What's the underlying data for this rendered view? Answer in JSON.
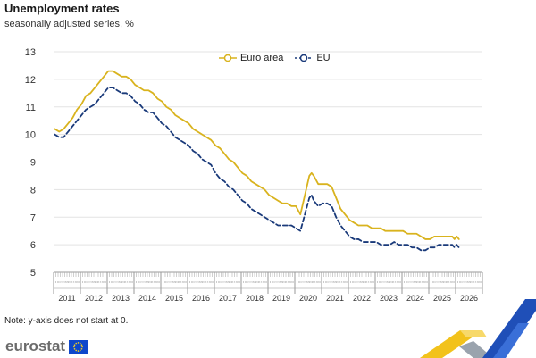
{
  "header": {
    "title": "Unemployment rates",
    "subtitle": "seasonally adjusted series, %"
  },
  "note": "Note: y-axis does not start at 0.",
  "brand": {
    "logo_text": "eurostat",
    "logo_color": "#6b6b6b",
    "flag_color": "#0e47cb",
    "flag_stars_color": "#ffd617"
  },
  "chart_data": {
    "type": "line",
    "title": "Unemployment rates",
    "subtitle": "seasonally adjusted series, %",
    "xlabel": "",
    "ylabel": "",
    "ylim": [
      5,
      13
    ],
    "yticks": [
      5,
      6,
      7,
      8,
      9,
      10,
      11,
      12,
      13
    ],
    "xlim": [
      "2011-01",
      "2026-12"
    ],
    "xtick_labels": [
      "2011",
      "2012",
      "2013",
      "2014",
      "2015",
      "2016",
      "2017",
      "2018",
      "2019",
      "2020",
      "2021",
      "2022",
      "2023",
      "2024",
      "2025",
      "2026"
    ],
    "xtick_minor_labels": [
      "II",
      "III",
      "IV",
      "V",
      "VI",
      "VII",
      "VIII",
      "IX",
      "X",
      "XI",
      "XII"
    ],
    "grid": "horizontal",
    "legend_position": "top-center",
    "series": [
      {
        "name": "Euro area",
        "color": "#d9b31e",
        "dash": "solid",
        "points": [
          [
            "2011-01",
            10.2
          ],
          [
            "2011-03",
            10.1
          ],
          [
            "2011-05",
            10.2
          ],
          [
            "2011-07",
            10.4
          ],
          [
            "2011-09",
            10.6
          ],
          [
            "2011-11",
            10.9
          ],
          [
            "2012-01",
            11.1
          ],
          [
            "2012-03",
            11.4
          ],
          [
            "2012-05",
            11.5
          ],
          [
            "2012-07",
            11.7
          ],
          [
            "2012-09",
            11.9
          ],
          [
            "2012-11",
            12.1
          ],
          [
            "2013-01",
            12.3
          ],
          [
            "2013-03",
            12.3
          ],
          [
            "2013-05",
            12.2
          ],
          [
            "2013-07",
            12.1
          ],
          [
            "2013-09",
            12.1
          ],
          [
            "2013-11",
            12.0
          ],
          [
            "2014-01",
            11.8
          ],
          [
            "2014-03",
            11.7
          ],
          [
            "2014-05",
            11.6
          ],
          [
            "2014-07",
            11.6
          ],
          [
            "2014-09",
            11.5
          ],
          [
            "2014-11",
            11.3
          ],
          [
            "2015-01",
            11.2
          ],
          [
            "2015-03",
            11.0
          ],
          [
            "2015-05",
            10.9
          ],
          [
            "2015-07",
            10.7
          ],
          [
            "2015-09",
            10.6
          ],
          [
            "2015-11",
            10.5
          ],
          [
            "2016-01",
            10.4
          ],
          [
            "2016-03",
            10.2
          ],
          [
            "2016-05",
            10.1
          ],
          [
            "2016-07",
            10.0
          ],
          [
            "2016-09",
            9.9
          ],
          [
            "2016-11",
            9.8
          ],
          [
            "2017-01",
            9.6
          ],
          [
            "2017-03",
            9.5
          ],
          [
            "2017-05",
            9.3
          ],
          [
            "2017-07",
            9.1
          ],
          [
            "2017-09",
            9.0
          ],
          [
            "2017-11",
            8.8
          ],
          [
            "2018-01",
            8.6
          ],
          [
            "2018-03",
            8.5
          ],
          [
            "2018-05",
            8.3
          ],
          [
            "2018-07",
            8.2
          ],
          [
            "2018-09",
            8.1
          ],
          [
            "2018-11",
            8.0
          ],
          [
            "2019-01",
            7.8
          ],
          [
            "2019-03",
            7.7
          ],
          [
            "2019-05",
            7.6
          ],
          [
            "2019-07",
            7.5
          ],
          [
            "2019-09",
            7.5
          ],
          [
            "2019-11",
            7.4
          ],
          [
            "2020-01",
            7.4
          ],
          [
            "2020-03",
            7.1
          ],
          [
            "2020-05",
            7.8
          ],
          [
            "2020-07",
            8.5
          ],
          [
            "2020-08",
            8.6
          ],
          [
            "2020-09",
            8.5
          ],
          [
            "2020-11",
            8.2
          ],
          [
            "2021-01",
            8.2
          ],
          [
            "2021-03",
            8.2
          ],
          [
            "2021-05",
            8.1
          ],
          [
            "2021-07",
            7.7
          ],
          [
            "2021-09",
            7.3
          ],
          [
            "2021-11",
            7.1
          ],
          [
            "2022-01",
            6.9
          ],
          [
            "2022-03",
            6.8
          ],
          [
            "2022-05",
            6.7
          ],
          [
            "2022-07",
            6.7
          ],
          [
            "2022-09",
            6.7
          ],
          [
            "2022-11",
            6.6
          ],
          [
            "2023-01",
            6.6
          ],
          [
            "2023-03",
            6.6
          ],
          [
            "2023-05",
            6.5
          ],
          [
            "2023-07",
            6.5
          ],
          [
            "2023-09",
            6.5
          ],
          [
            "2023-11",
            6.5
          ],
          [
            "2024-01",
            6.5
          ],
          [
            "2024-03",
            6.4
          ],
          [
            "2024-05",
            6.4
          ],
          [
            "2024-07",
            6.4
          ],
          [
            "2024-09",
            6.3
          ],
          [
            "2024-11",
            6.2
          ],
          [
            "2025-01",
            6.2
          ],
          [
            "2025-03",
            6.3
          ],
          [
            "2025-05",
            6.3
          ],
          [
            "2025-07",
            6.3
          ],
          [
            "2025-09",
            6.3
          ],
          [
            "2025-11",
            6.3
          ],
          [
            "2025-12",
            6.2
          ],
          [
            "2026-01",
            6.3
          ],
          [
            "2026-02",
            6.2
          ]
        ]
      },
      {
        "name": "EU",
        "color": "#1a3a7a",
        "dash": "dashed",
        "points": [
          [
            "2011-01",
            10.0
          ],
          [
            "2011-03",
            9.9
          ],
          [
            "2011-05",
            9.9
          ],
          [
            "2011-07",
            10.1
          ],
          [
            "2011-09",
            10.3
          ],
          [
            "2011-11",
            10.5
          ],
          [
            "2012-01",
            10.7
          ],
          [
            "2012-03",
            10.9
          ],
          [
            "2012-05",
            11.0
          ],
          [
            "2012-07",
            11.1
          ],
          [
            "2012-09",
            11.3
          ],
          [
            "2012-11",
            11.5
          ],
          [
            "2013-01",
            11.7
          ],
          [
            "2013-03",
            11.7
          ],
          [
            "2013-05",
            11.6
          ],
          [
            "2013-07",
            11.5
          ],
          [
            "2013-09",
            11.5
          ],
          [
            "2013-11",
            11.4
          ],
          [
            "2014-01",
            11.2
          ],
          [
            "2014-03",
            11.1
          ],
          [
            "2014-05",
            10.9
          ],
          [
            "2014-07",
            10.8
          ],
          [
            "2014-09",
            10.8
          ],
          [
            "2014-11",
            10.6
          ],
          [
            "2015-01",
            10.4
          ],
          [
            "2015-03",
            10.3
          ],
          [
            "2015-05",
            10.1
          ],
          [
            "2015-07",
            9.9
          ],
          [
            "2015-09",
            9.8
          ],
          [
            "2015-11",
            9.7
          ],
          [
            "2016-01",
            9.6
          ],
          [
            "2016-03",
            9.4
          ],
          [
            "2016-05",
            9.3
          ],
          [
            "2016-07",
            9.1
          ],
          [
            "2016-09",
            9.0
          ],
          [
            "2016-11",
            8.9
          ],
          [
            "2017-01",
            8.6
          ],
          [
            "2017-03",
            8.4
          ],
          [
            "2017-05",
            8.3
          ],
          [
            "2017-07",
            8.1
          ],
          [
            "2017-09",
            8.0
          ],
          [
            "2017-11",
            7.8
          ],
          [
            "2018-01",
            7.6
          ],
          [
            "2018-03",
            7.5
          ],
          [
            "2018-05",
            7.3
          ],
          [
            "2018-07",
            7.2
          ],
          [
            "2018-09",
            7.1
          ],
          [
            "2018-11",
            7.0
          ],
          [
            "2019-01",
            6.9
          ],
          [
            "2019-03",
            6.8
          ],
          [
            "2019-05",
            6.7
          ],
          [
            "2019-07",
            6.7
          ],
          [
            "2019-09",
            6.7
          ],
          [
            "2019-11",
            6.7
          ],
          [
            "2020-01",
            6.6
          ],
          [
            "2020-03",
            6.5
          ],
          [
            "2020-05",
            7.1
          ],
          [
            "2020-07",
            7.7
          ],
          [
            "2020-08",
            7.8
          ],
          [
            "2020-09",
            7.6
          ],
          [
            "2020-11",
            7.4
          ],
          [
            "2021-01",
            7.5
          ],
          [
            "2021-03",
            7.5
          ],
          [
            "2021-05",
            7.4
          ],
          [
            "2021-07",
            7.0
          ],
          [
            "2021-09",
            6.7
          ],
          [
            "2021-11",
            6.5
          ],
          [
            "2022-01",
            6.3
          ],
          [
            "2022-03",
            6.2
          ],
          [
            "2022-05",
            6.2
          ],
          [
            "2022-07",
            6.1
          ],
          [
            "2022-09",
            6.1
          ],
          [
            "2022-11",
            6.1
          ],
          [
            "2023-01",
            6.1
          ],
          [
            "2023-03",
            6.0
          ],
          [
            "2023-05",
            6.0
          ],
          [
            "2023-07",
            6.0
          ],
          [
            "2023-09",
            6.1
          ],
          [
            "2023-11",
            6.0
          ],
          [
            "2024-01",
            6.0
          ],
          [
            "2024-03",
            6.0
          ],
          [
            "2024-05",
            5.9
          ],
          [
            "2024-07",
            5.9
          ],
          [
            "2024-09",
            5.8
          ],
          [
            "2024-11",
            5.8
          ],
          [
            "2025-01",
            5.9
          ],
          [
            "2025-03",
            5.9
          ],
          [
            "2025-05",
            6.0
          ],
          [
            "2025-07",
            6.0
          ],
          [
            "2025-09",
            6.0
          ],
          [
            "2025-11",
            6.0
          ],
          [
            "2025-12",
            5.9
          ],
          [
            "2026-01",
            6.0
          ],
          [
            "2026-02",
            5.9
          ]
        ]
      }
    ]
  }
}
